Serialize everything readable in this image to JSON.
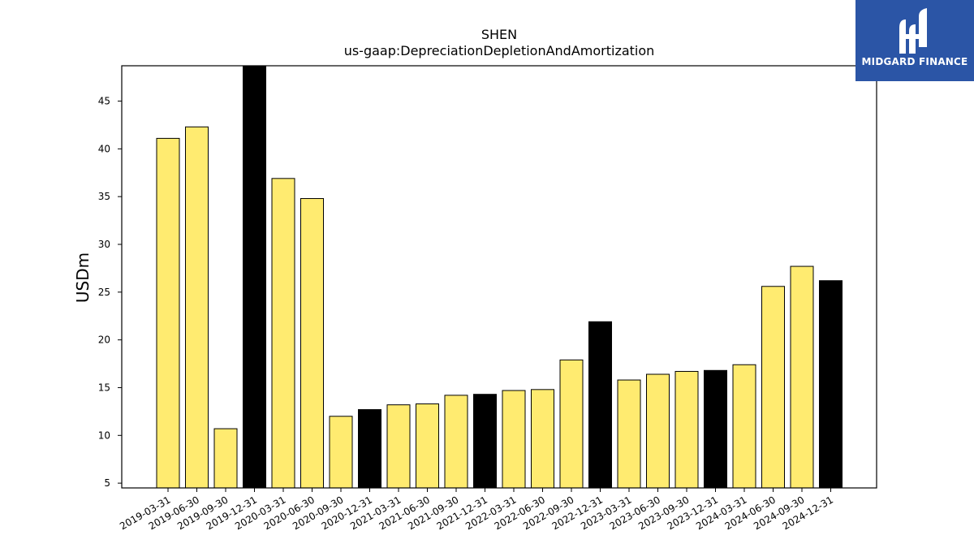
{
  "chart_data": {
    "type": "bar",
    "title": "SHEN",
    "subtitle": "us-gaap:DepreciationDepletionAndAmortization",
    "ylabel": "USDm",
    "categories": [
      "2019-03-31",
      "2019-06-30",
      "2019-09-30",
      "2019-12-31",
      "2020-03-31",
      "2020-06-30",
      "2020-09-30",
      "2020-12-31",
      "2021-03-31",
      "2021-06-30",
      "2021-09-30",
      "2021-12-31",
      "2022-03-31",
      "2022-06-30",
      "2022-09-30",
      "2022-12-31",
      "2023-03-31",
      "2023-06-30",
      "2023-09-30",
      "2023-12-31",
      "2024-03-31",
      "2024-06-30",
      "2024-09-30",
      "2024-12-31"
    ],
    "values": [
      41.1,
      42.3,
      10.7,
      48.7,
      36.9,
      34.8,
      12.0,
      12.7,
      13.2,
      13.3,
      14.2,
      14.3,
      14.7,
      14.8,
      17.9,
      21.9,
      15.8,
      16.4,
      16.7,
      16.8,
      17.4,
      25.6,
      27.7,
      26.2
    ],
    "fiscal_year_end": [
      false,
      false,
      false,
      true,
      false,
      false,
      false,
      true,
      false,
      false,
      false,
      true,
      false,
      false,
      false,
      true,
      false,
      false,
      false,
      true,
      false,
      false,
      false,
      true
    ],
    "ylim": [
      4.5,
      48.7
    ],
    "yticks": [
      5,
      10,
      15,
      20,
      25,
      30,
      35,
      40,
      45
    ],
    "grid": false,
    "colors": {
      "quarter": "#ffeb70",
      "year_end": "#000000",
      "edge": "#000000"
    }
  },
  "logo": {
    "text": "MIDGARD FINANCE",
    "background": "#2b55a6"
  }
}
